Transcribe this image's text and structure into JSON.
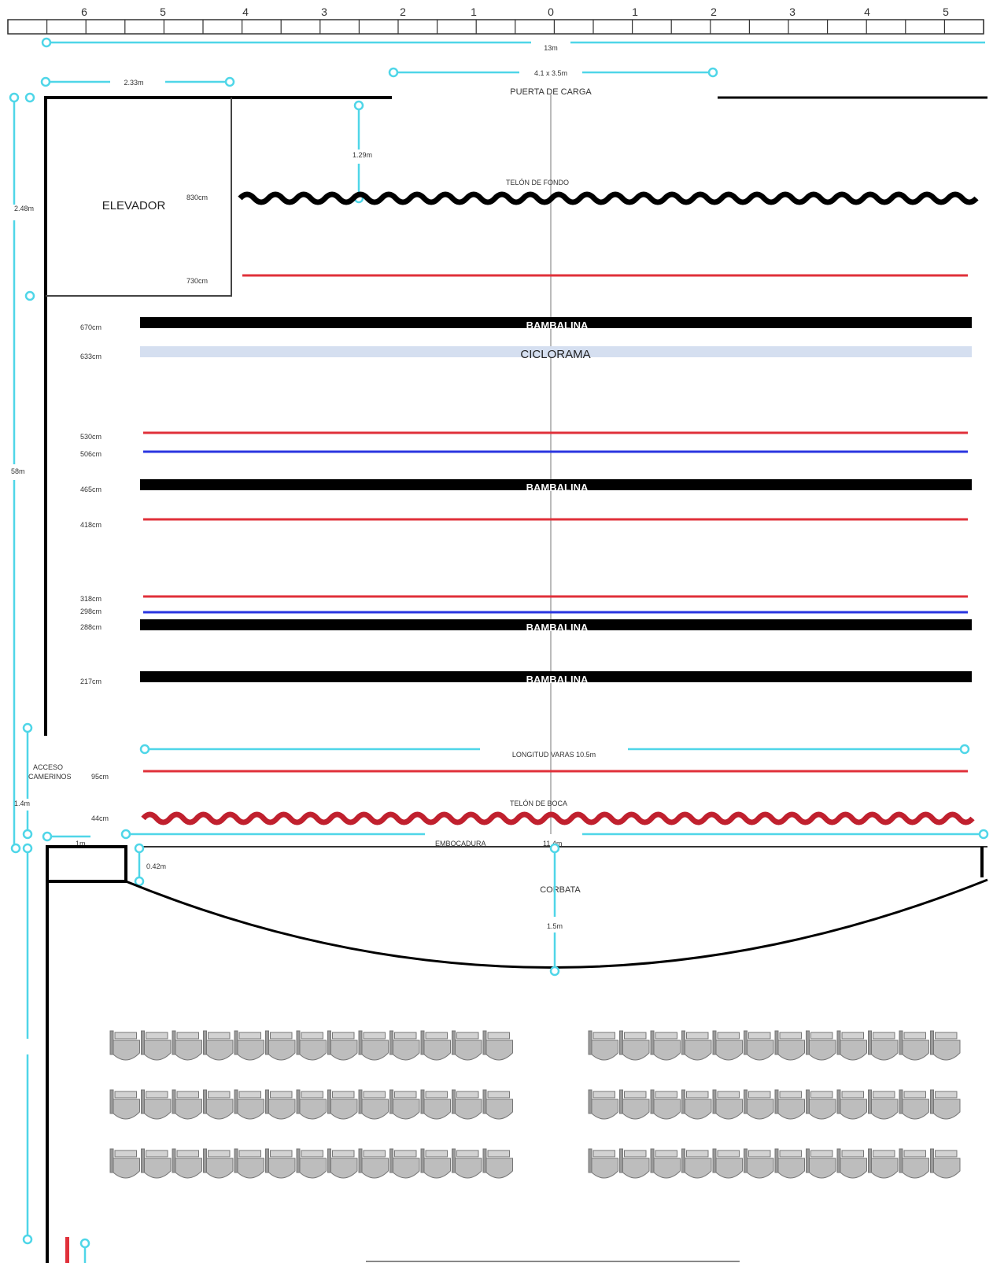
{
  "ruler": {
    "left_numbers": [
      "6",
      "5",
      "4",
      "3",
      "2",
      "1"
    ],
    "center_number": "0",
    "right_numbers": [
      "1",
      "2",
      "3",
      "4",
      "5"
    ]
  },
  "dimensions": {
    "total_width": "13m",
    "elevator_width": "2.33m",
    "loading_door_size": "4.1 x 3.5m",
    "backdrop_offset": "1.29m",
    "elevator_depth": "2.48m",
    "stage_depth": "58m",
    "bar_length": "LONGITUD VARAS 10.5m",
    "access_depth": "1.4m",
    "small_width": "1m",
    "corner_depth": "0.42m",
    "proscenium_width": "11.4m",
    "apron_depth": "1.5m"
  },
  "labels": {
    "loading_door": "PUERTA DE CARGA",
    "elevator": "ELEVADOR",
    "backdrop": "TELÓN DE FONDO",
    "cyclorama": "CICLORAMA",
    "border": "BAMBALINA",
    "dressing_access_1": "ACCESO",
    "dressing_access_2": "CAMERINOS",
    "front_curtain": "TELÓN DE BOCA",
    "proscenium": "EMBOCADURA",
    "apron": "CORBATA"
  },
  "battens": [
    {
      "kind": "backdrop",
      "height": "830cm",
      "color": "#000000"
    },
    {
      "kind": "electric",
      "height": "730cm",
      "color": "#e0303a"
    },
    {
      "kind": "border",
      "height": "670cm",
      "color": "#000000"
    },
    {
      "kind": "cyclorama",
      "height": "633cm",
      "color": "#d5dff0"
    },
    {
      "kind": "electric",
      "height": "530cm",
      "color": "#e0303a"
    },
    {
      "kind": "batten",
      "height": "506cm",
      "color": "#2a35e0"
    },
    {
      "kind": "border",
      "height": "465cm",
      "color": "#000000"
    },
    {
      "kind": "electric",
      "height": "418cm",
      "color": "#e0303a"
    },
    {
      "kind": "electric",
      "height": "318cm",
      "color": "#e0303a"
    },
    {
      "kind": "batten",
      "height": "298cm",
      "color": "#2a35e0"
    },
    {
      "kind": "border",
      "height": "288cm",
      "color": "#000000"
    },
    {
      "kind": "border",
      "height": "217cm",
      "color": "#000000"
    },
    {
      "kind": "electric",
      "height": "95cm",
      "color": "#e0303a"
    },
    {
      "kind": "front_curtain",
      "height": "44cm",
      "color": "#c0202e"
    }
  ],
  "colors": {
    "dimension": "#4fd6e8",
    "seat_fill": "#bdbdbd",
    "seat_stroke": "#777777",
    "wall": "#000000"
  }
}
